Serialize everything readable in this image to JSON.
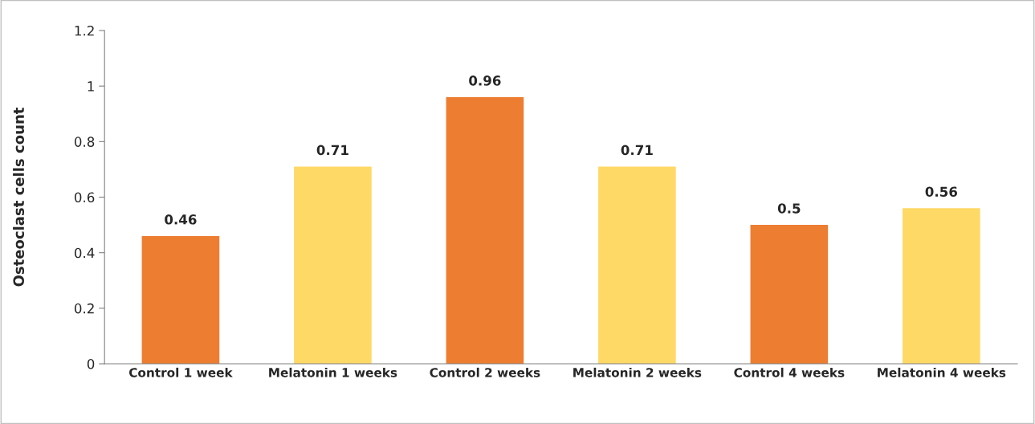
{
  "chart_data": {
    "type": "bar",
    "ylabel": "Osteoclast cells count",
    "categories": [
      "Control 1 week",
      "Melatonin 1 weeks",
      "Control 2 weeks",
      "Melatonin 2 weeks",
      "Control 4 weeks",
      "Melatonin 4 weeks"
    ],
    "values": [
      0.46,
      0.71,
      0.96,
      0.71,
      0.5,
      0.56
    ],
    "colors": [
      "#ed7d31",
      "#ffd966",
      "#ed7d31",
      "#ffd966",
      "#ed7d31",
      "#ffd966"
    ],
    "ylim": [
      0,
      1.2
    ],
    "yticks": [
      0,
      0.2,
      0.4,
      0.6,
      0.8,
      1,
      1.2
    ],
    "data_labels": true,
    "grid": false,
    "legend": false
  }
}
